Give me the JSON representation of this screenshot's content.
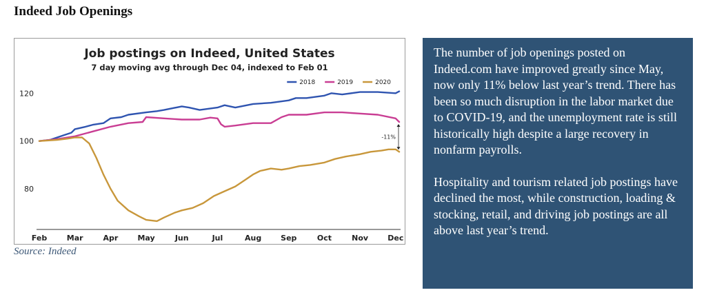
{
  "page": {
    "heading": "Indeed Job Openings",
    "source": "Source: Indeed",
    "paragraphs": [
      "The number of job openings posted on Indeed.com have improved greatly since May, now only 11% below last year’s trend. There has been so much disruption in the labor market due to COVID-19, and the unemployment rate is still historically high despite a large recovery in nonfarm payrolls.",
      "Hospitality and tourism related job postings have declined the most, while construction, loading & stocking, retail, and driving job postings are all above last year’s trend."
    ]
  },
  "chart_data": {
    "type": "line",
    "title": "Job postings on Indeed, United States",
    "subtitle": "7 day moving avg through Dec 04, indexed to Feb 01",
    "xlabel": "",
    "ylabel": "",
    "x_ticks": [
      "Feb",
      "Mar",
      "Apr",
      "May",
      "Jun",
      "Jul",
      "Aug",
      "Sep",
      "Oct",
      "Nov",
      "Dec"
    ],
    "y_ticks": [
      80,
      100,
      120
    ],
    "x_range": [
      0,
      10.1
    ],
    "y_range": [
      63,
      125
    ],
    "grid": false,
    "legend_position": "top-right",
    "annotation": "-11%",
    "series": [
      {
        "name": "2018",
        "color": "#2f54b0",
        "points": [
          [
            0,
            100
          ],
          [
            0.3,
            100.5
          ],
          [
            0.5,
            101.5
          ],
          [
            0.7,
            102.5
          ],
          [
            0.9,
            103.5
          ],
          [
            1,
            105
          ],
          [
            1.3,
            106
          ],
          [
            1.5,
            106.8
          ],
          [
            1.8,
            107.5
          ],
          [
            2,
            109.5
          ],
          [
            2.3,
            110
          ],
          [
            2.5,
            111
          ],
          [
            3,
            112
          ],
          [
            3.3,
            112.5
          ],
          [
            3.5,
            113
          ],
          [
            4,
            114.5
          ],
          [
            4.2,
            114
          ],
          [
            4.5,
            113
          ],
          [
            5,
            114
          ],
          [
            5.2,
            115
          ],
          [
            5.5,
            114
          ],
          [
            6,
            115.5
          ],
          [
            6.5,
            116
          ],
          [
            7,
            117
          ],
          [
            7.2,
            118
          ],
          [
            7.5,
            118
          ],
          [
            8,
            119
          ],
          [
            8.2,
            120
          ],
          [
            8.5,
            119.5
          ],
          [
            9,
            120.5
          ],
          [
            9.5,
            120.5
          ],
          [
            10,
            120
          ],
          [
            10.1,
            120.8
          ]
        ]
      },
      {
        "name": "2019",
        "color": "#c93d93",
        "points": [
          [
            0,
            100
          ],
          [
            0.5,
            100.8
          ],
          [
            1,
            102
          ],
          [
            1.5,
            104
          ],
          [
            2,
            106
          ],
          [
            2.5,
            107.5
          ],
          [
            2.9,
            108
          ],
          [
            3,
            110
          ],
          [
            3.5,
            109.5
          ],
          [
            4,
            109
          ],
          [
            4.5,
            109
          ],
          [
            4.8,
            109.8
          ],
          [
            5,
            109.5
          ],
          [
            5.1,
            107
          ],
          [
            5.2,
            106
          ],
          [
            5.5,
            106.5
          ],
          [
            6,
            107.5
          ],
          [
            6.5,
            107.5
          ],
          [
            6.8,
            110
          ],
          [
            7,
            111
          ],
          [
            7.5,
            111
          ],
          [
            8,
            112
          ],
          [
            8.5,
            112
          ],
          [
            9,
            111.5
          ],
          [
            9.5,
            111
          ],
          [
            10,
            109.5
          ],
          [
            10.1,
            108
          ]
        ]
      },
      {
        "name": "2020",
        "color": "#c8973b",
        "points": [
          [
            0,
            100
          ],
          [
            0.5,
            100.5
          ],
          [
            0.8,
            101
          ],
          [
            1,
            101.5
          ],
          [
            1.2,
            101.5
          ],
          [
            1.4,
            99
          ],
          [
            1.6,
            93
          ],
          [
            1.8,
            86
          ],
          [
            2,
            80
          ],
          [
            2.2,
            75
          ],
          [
            2.5,
            71
          ],
          [
            2.8,
            68.5
          ],
          [
            3,
            67
          ],
          [
            3.3,
            66.5
          ],
          [
            3.5,
            68
          ],
          [
            3.8,
            70
          ],
          [
            4,
            71
          ],
          [
            4.3,
            72
          ],
          [
            4.6,
            74
          ],
          [
            4.9,
            77
          ],
          [
            5.2,
            79
          ],
          [
            5.5,
            81
          ],
          [
            5.8,
            84
          ],
          [
            6,
            86
          ],
          [
            6.2,
            87.5
          ],
          [
            6.5,
            88.5
          ],
          [
            6.8,
            88
          ],
          [
            7,
            88.5
          ],
          [
            7.3,
            89.5
          ],
          [
            7.6,
            90
          ],
          [
            8,
            91
          ],
          [
            8.3,
            92.5
          ],
          [
            8.6,
            93.5
          ],
          [
            9,
            94.5
          ],
          [
            9.3,
            95.5
          ],
          [
            9.6,
            96
          ],
          [
            9.8,
            96.5
          ],
          [
            10,
            96.5
          ],
          [
            10.1,
            95.5
          ]
        ]
      }
    ]
  }
}
